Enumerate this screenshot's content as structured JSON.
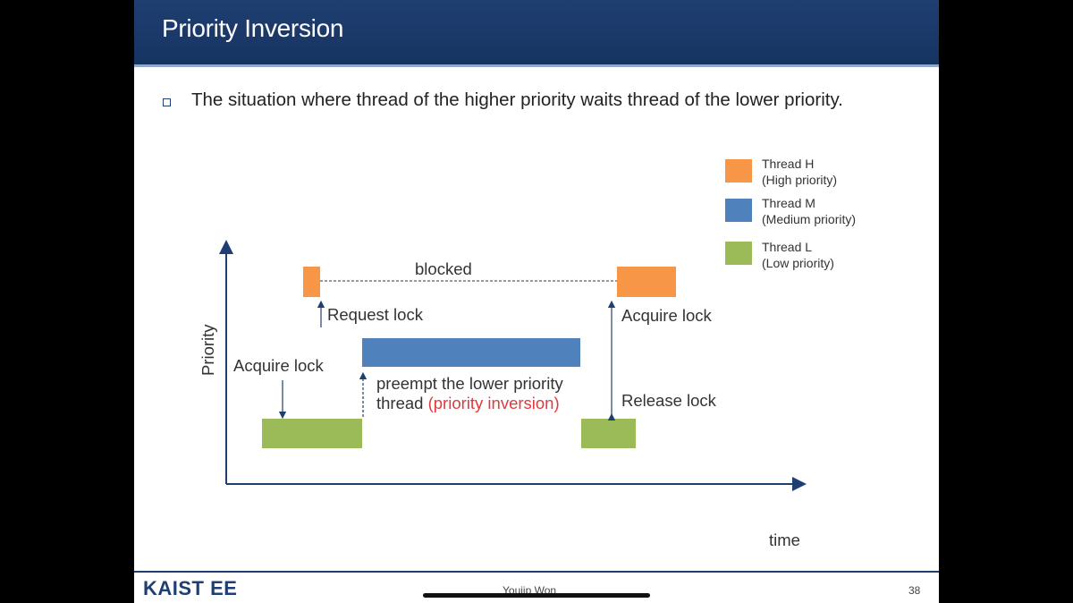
{
  "slide": {
    "title": "Priority Inversion",
    "bullet": "The situation where thread of the higher priority waits thread of the lower priority."
  },
  "legend": [
    {
      "line1": "Thread H",
      "line2": "(High priority)",
      "color": "#f79646"
    },
    {
      "line1": "Thread M",
      "line2": "(Medium priority)",
      "color": "#4f81bd"
    },
    {
      "line1": "Thread L",
      "line2": "(Low priority)",
      "color": "#9bbb59"
    }
  ],
  "diagram": {
    "y_axis_label": "Priority",
    "x_axis_label": "time",
    "blocked": "blocked",
    "request_lock": "Request lock",
    "acquire_lock_h": "Acquire lock",
    "acquire_lock_l": "Acquire lock",
    "release_lock": "Release lock",
    "preempt_line1": "preempt the lower priority",
    "preempt_line2": "thread",
    "preempt_highlight": "(priority inversion)",
    "highlight_color": "#e0393e"
  },
  "footer": {
    "logo": "KAIST EE",
    "author": "Youjip Won",
    "page": "38"
  }
}
